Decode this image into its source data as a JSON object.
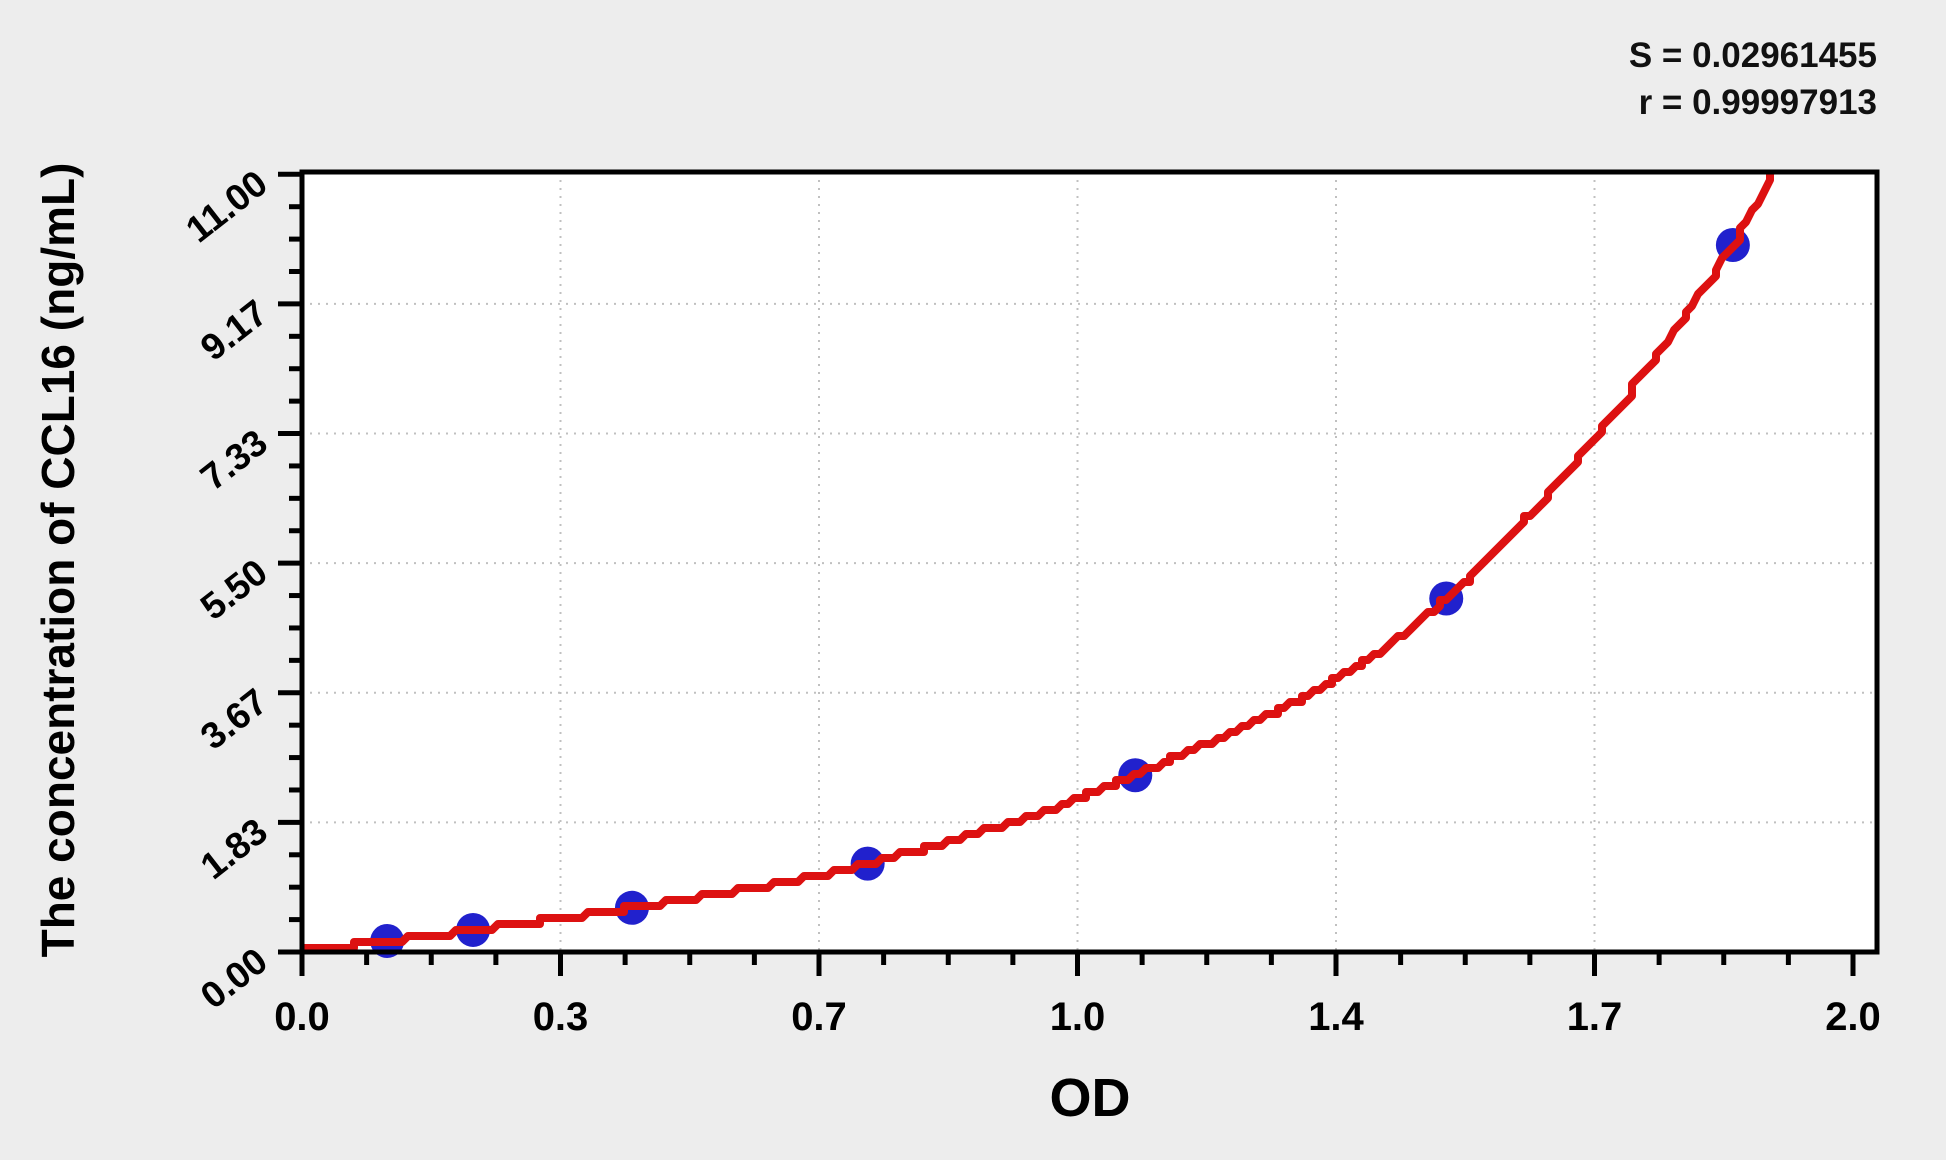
{
  "figure": {
    "background_color": "#ededed",
    "plot_background_color": "#ffffff",
    "frame_color": "#000000",
    "grid_color": "#c0c0c0"
  },
  "stats": {
    "s_line": "S = 0.02961455",
    "r_line": "r = 0.99997913"
  },
  "chart_data": {
    "type": "scatter",
    "title": "",
    "xlabel": "OD",
    "ylabel": "The concentration of CCL16 (ng/mL)",
    "xlim": [
      0,
      2.07
    ],
    "ylim": [
      0,
      11.03
    ],
    "x_tick_labels": [
      "0.0",
      "0.3",
      "0.7",
      "1.0",
      "1.4",
      "1.7",
      "2.0"
    ],
    "y_tick_labels": [
      "0.00",
      "1.83",
      "3.67",
      "5.50",
      "7.33",
      "9.17",
      "11.00"
    ],
    "x_tick_step": 0.34,
    "y_tick_step": 1.8333,
    "minor_ticks_per_interval": 3,
    "grid": "dotted at major ticks",
    "annotations": [
      "S = 0.02961455",
      "r = 0.99997913"
    ],
    "series": [
      {
        "name": "standard-points",
        "type": "scatter",
        "color": "#2121cd",
        "marker_radius_px": 17,
        "points": [
          {
            "od": 0.112,
            "conc": 0.156
          },
          {
            "od": 0.225,
            "conc": 0.312
          },
          {
            "od": 0.434,
            "conc": 0.625
          },
          {
            "od": 0.744,
            "conc": 1.25
          },
          {
            "od": 1.096,
            "conc": 2.5
          },
          {
            "od": 1.505,
            "conc": 5.0
          },
          {
            "od": 1.882,
            "conc": 10.0
          }
        ]
      },
      {
        "name": "fitted-curve",
        "type": "line",
        "color": "#dd1111",
        "stroke_width_px": 8,
        "visible_od_range": [
          0.0,
          1.94
        ],
        "curve_start": {
          "od": 0.0,
          "conc": 0.02
        },
        "curve_end": {
          "od": 1.94,
          "conc": 11.15
        }
      }
    ]
  }
}
